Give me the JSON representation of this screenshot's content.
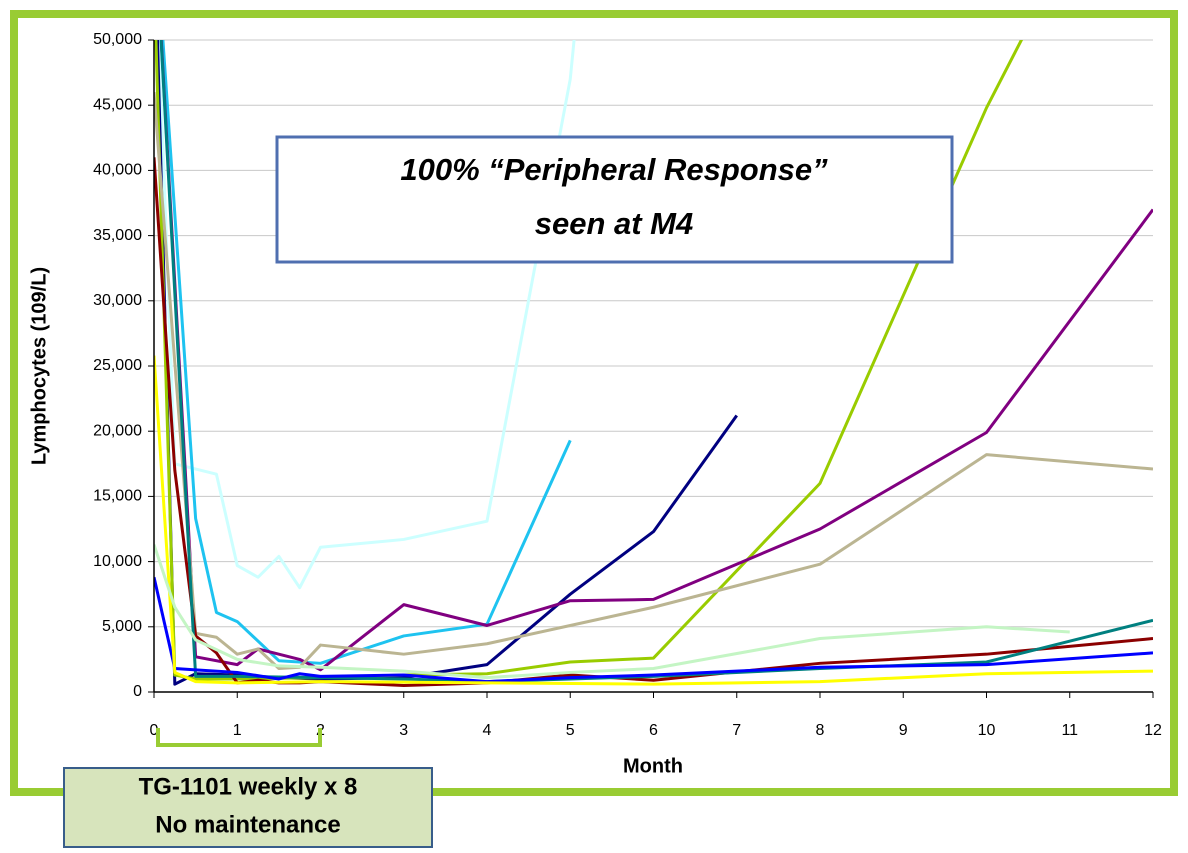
{
  "chart_data": {
    "type": "line",
    "x_label": "Month",
    "y_label": "Lymphocytes (109/L)",
    "xlim": [
      0,
      12
    ],
    "ylim": [
      0,
      50000
    ],
    "xticks": [
      0,
      1,
      2,
      3,
      4,
      5,
      6,
      7,
      8,
      9,
      10,
      11,
      12
    ],
    "yticks": [
      0,
      {
        "value": 5000,
        "label": "5,000"
      },
      {
        "value": 10000,
        "label": "10,000"
      },
      {
        "value": 15000,
        "label": "15,000"
      },
      {
        "value": 20000,
        "label": "20,000"
      },
      {
        "value": 25000,
        "label": "25,000"
      },
      {
        "value": 30000,
        "label": "30,000"
      },
      {
        "value": 35000,
        "label": "35,000"
      },
      {
        "value": 40000,
        "label": "40,000"
      },
      {
        "value": 45000,
        "label": "45,000"
      },
      {
        "value": 50000,
        "label": "50,000"
      }
    ],
    "grid": true,
    "annotations": [
      {
        "lines": [
          "100% “Peripheral Response”",
          "seen at M4"
        ]
      },
      {
        "lines": [
          "TG-1101 weekly x 8",
          "No maintenance"
        ]
      }
    ],
    "series": [
      {
        "color": "#ccffff",
        "x": [
          0,
          0.25,
          0.75,
          1,
          1.25,
          1.5,
          1.75,
          2,
          3,
          4,
          5,
          5.2
        ],
        "values": [
          60000,
          17500,
          16700,
          9700,
          8800,
          10400,
          8000,
          11100,
          11700,
          13100,
          47000,
          60000
        ]
      },
      {
        "color": "#1ec3f0",
        "x": [
          0,
          0.5,
          0.75,
          1,
          1.5,
          2,
          3,
          4,
          5
        ],
        "values": [
          60000,
          13300,
          6100,
          5400,
          2400,
          2200,
          4300,
          5200,
          19300
        ]
      },
      {
        "color": "#000080",
        "x": [
          0,
          0.25,
          0.5,
          1,
          1.5,
          2,
          3,
          4,
          5,
          6,
          7
        ],
        "values": [
          60000,
          600,
          1400,
          1300,
          1100,
          1000,
          1100,
          2100,
          7500,
          12300,
          21200
        ]
      },
      {
        "color": "#99cc00",
        "x": [
          0,
          0.25,
          0.5,
          1,
          2,
          3,
          4,
          5,
          6,
          8,
          10,
          10.5
        ],
        "values": [
          55000,
          1300,
          1000,
          1000,
          1100,
          1300,
          1400,
          2300,
          2600,
          16000,
          44800,
          51000
        ]
      },
      {
        "color": "#800080",
        "x": [
          0,
          0.5,
          1,
          1.25,
          1.75,
          2,
          3,
          4,
          5,
          6,
          8,
          10,
          12
        ],
        "values": [
          60000,
          2700,
          2100,
          3300,
          2500,
          1700,
          6700,
          5100,
          7000,
          7100,
          12500,
          19900,
          37000
        ]
      },
      {
        "color": "#bbb592",
        "x": [
          0,
          0.5,
          0.75,
          1,
          1.25,
          1.5,
          1.75,
          2,
          3,
          4,
          5,
          6,
          8,
          10,
          12
        ],
        "values": [
          46000,
          4500,
          4200,
          2900,
          3300,
          1800,
          1900,
          3600,
          2900,
          3700,
          5100,
          6500,
          9800,
          18200,
          17100
        ]
      },
      {
        "color": "#8b0000",
        "x": [
          0,
          0.25,
          0.5,
          0.75,
          1,
          1.25,
          1.5,
          1.75,
          2,
          3,
          4,
          5,
          6,
          8,
          10,
          12
        ],
        "values": [
          41000,
          17000,
          4300,
          3000,
          700,
          900,
          700,
          700,
          800,
          500,
          700,
          1300,
          900,
          2200,
          2900,
          4100
        ]
      },
      {
        "color": "#008080",
        "x": [
          0,
          0.5,
          1,
          2,
          3,
          4,
          5,
          6,
          8,
          10,
          12
        ],
        "values": [
          60000,
          1200,
          1200,
          1100,
          1000,
          800,
          1000,
          1200,
          1800,
          2300,
          5500
        ]
      },
      {
        "color": "#0000ff",
        "x": [
          0,
          0.25,
          0.5,
          1,
          1.5,
          1.75,
          2,
          3,
          4,
          5,
          6,
          8,
          10,
          12
        ],
        "values": [
          8800,
          1800,
          1700,
          1500,
          1000,
          1400,
          1200,
          1300,
          800,
          1100,
          1300,
          1900,
          2100,
          3000
        ]
      },
      {
        "color": "#ffff00",
        "x": [
          0,
          0.25,
          0.5,
          1,
          2,
          4,
          6,
          8,
          10,
          12
        ],
        "values": [
          25800,
          1500,
          800,
          700,
          800,
          700,
          600,
          800,
          1400,
          1600
        ]
      },
      {
        "color": "#c4f5c4",
        "x": [
          0,
          0.25,
          0.5,
          1,
          1.5,
          2,
          3,
          4,
          5,
          6,
          8,
          10,
          11
        ],
        "values": [
          11300,
          6500,
          4000,
          2500,
          2000,
          1900,
          1600,
          1100,
          1500,
          1800,
          4100,
          5000,
          4600
        ]
      }
    ]
  }
}
